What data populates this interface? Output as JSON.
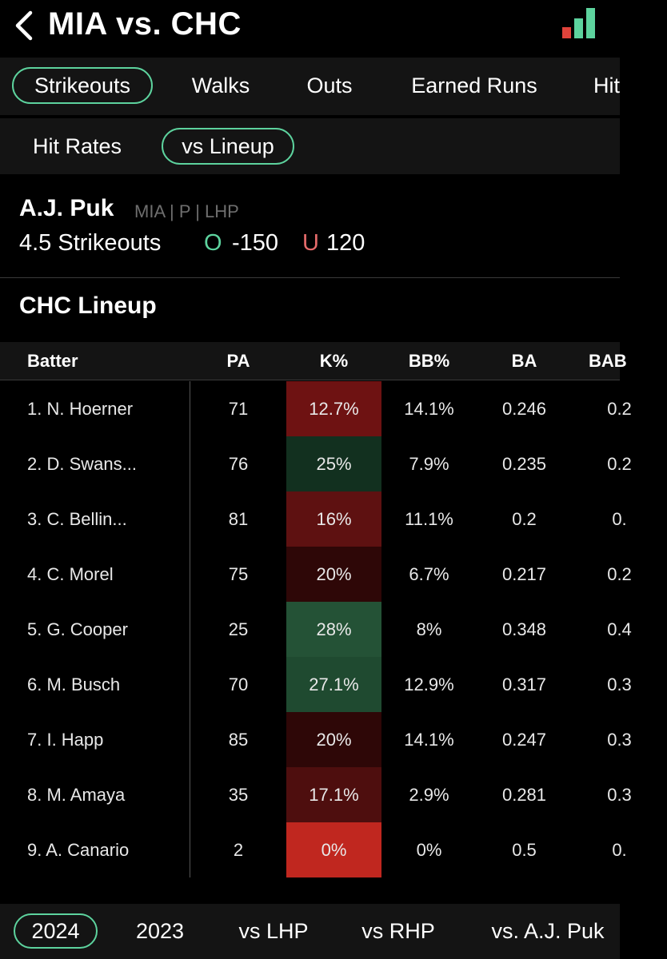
{
  "header": {
    "title": "MIA vs. CHC",
    "back_icon": "chevron-left-icon",
    "signal_icon": "signal-bars-icon",
    "signal_colors": [
      "#e0433b",
      "#5dd39e",
      "#5dd39e"
    ]
  },
  "prop_tabs": [
    {
      "label": "Strikeouts",
      "active": true
    },
    {
      "label": "Walks",
      "active": false
    },
    {
      "label": "Outs",
      "active": false
    },
    {
      "label": "Earned Runs",
      "active": false
    },
    {
      "label": "Hit",
      "active": false
    }
  ],
  "view_tabs": [
    {
      "label": "Hit Rates",
      "active": false
    },
    {
      "label": "vs Lineup",
      "active": true
    }
  ],
  "player": {
    "name": "A.J. Puk",
    "meta": "MIA | P | LHP",
    "prop": "4.5 Strikeouts",
    "over_label": "O",
    "over_odds": "-150",
    "under_label": "U",
    "under_odds": "120"
  },
  "lineup_title": "CHC Lineup",
  "table": {
    "headers": [
      "Batter",
      "PA",
      "K%",
      "BB%",
      "BA",
      "BAB"
    ],
    "rows": [
      {
        "batter": "1. N. Hoerner",
        "pa": "71",
        "k": "12.7%",
        "bb": "14.1%",
        "ba": "0.246",
        "babip": "0.2",
        "k_color": "#6e1212"
      },
      {
        "batter": "2. D. Swans...",
        "pa": "76",
        "k": "25%",
        "bb": "7.9%",
        "ba": "0.235",
        "babip": "0.2",
        "k_color": "#12301f"
      },
      {
        "batter": "3. C. Bellin...",
        "pa": "81",
        "k": "16%",
        "bb": "11.1%",
        "ba": "0.2",
        "babip": "0.",
        "k_color": "#5e1111"
      },
      {
        "batter": "4. C. Morel",
        "pa": "75",
        "k": "20%",
        "bb": "6.7%",
        "ba": "0.217",
        "babip": "0.2",
        "k_color": "#2e0707"
      },
      {
        "batter": "5. G. Cooper",
        "pa": "25",
        "k": "28%",
        "bb": "8%",
        "ba": "0.348",
        "babip": "0.4",
        "k_color": "#245236"
      },
      {
        "batter": "6. M. Busch",
        "pa": "70",
        "k": "27.1%",
        "bb": "12.9%",
        "ba": "0.317",
        "babip": "0.3",
        "k_color": "#1f4a30"
      },
      {
        "batter": "7. I. Happ",
        "pa": "85",
        "k": "20%",
        "bb": "14.1%",
        "ba": "0.247",
        "babip": "0.3",
        "k_color": "#2e0707"
      },
      {
        "batter": "8. M. Amaya",
        "pa": "35",
        "k": "17.1%",
        "bb": "2.9%",
        "ba": "0.281",
        "babip": "0.3",
        "k_color": "#4e0e0e"
      },
      {
        "batter": "9. A. Canario",
        "pa": "2",
        "k": "0%",
        "bb": "0%",
        "ba": "0.5",
        "babip": "0.",
        "k_color": "#c0271f"
      }
    ]
  },
  "season_tabs": [
    {
      "label": "2024",
      "active": true
    },
    {
      "label": "2023",
      "active": false
    },
    {
      "label": "vs LHP",
      "active": false
    },
    {
      "label": "vs RHP",
      "active": false
    },
    {
      "label": "vs. A.J. Puk",
      "active": false
    }
  ]
}
